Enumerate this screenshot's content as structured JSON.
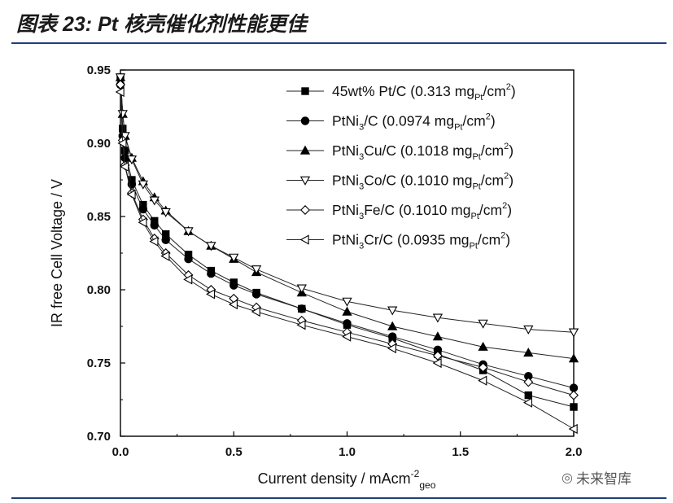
{
  "figure_title": "图表 23:   Pt 核壳催化剂性能更佳",
  "watermark": {
    "icon": "wechat-icon",
    "text": "未来智库"
  },
  "chart_data": {
    "type": "line",
    "xlabel": "Current density / mAcm",
    "xlabel_sup": "-2",
    "xlabel_sub": "geo",
    "ylabel": "IR free Cell Voltage / V",
    "xlim": [
      0,
      2.0
    ],
    "ylim": [
      0.7,
      0.95
    ],
    "x_ticks": [
      "0.0",
      "0.5",
      "1.0",
      "1.5",
      "2.0"
    ],
    "y_ticks": [
      "0.70",
      "0.75",
      "0.80",
      "0.85",
      "0.90",
      "0.95"
    ],
    "grid": false,
    "legend_position": "top-right",
    "series": [
      {
        "name": "45wt% Pt/C (0.313 mgPt/cm2)",
        "legend": {
          "main": "45wt% Pt/C (0.313 mg",
          "sub": "Pt",
          "tail": "/cm",
          "sup": "2",
          "end": ")"
        },
        "marker": "square",
        "fill": "#000000",
        "x": [
          0,
          0.01,
          0.02,
          0.05,
          0.1,
          0.15,
          0.2,
          0.3,
          0.4,
          0.5,
          0.6,
          0.8,
          1.0,
          1.2,
          1.4,
          1.6,
          1.8,
          2.0
        ],
        "y": [
          0.945,
          0.91,
          0.895,
          0.875,
          0.858,
          0.847,
          0.838,
          0.824,
          0.813,
          0.805,
          0.798,
          0.787,
          0.776,
          0.767,
          0.756,
          0.745,
          0.728,
          0.72
        ]
      },
      {
        "name": "PtNi3/C (0.0974 mgPt/cm2)",
        "legend": {
          "main": "PtNi",
          "sub1": "3",
          "mid": "/C (0.0974 mg",
          "sub": "Pt",
          "tail": "/cm",
          "sup": "2",
          "end": ")"
        },
        "marker": "circle",
        "fill": "#000000",
        "x": [
          0,
          0.01,
          0.02,
          0.05,
          0.1,
          0.15,
          0.2,
          0.3,
          0.4,
          0.5,
          0.6,
          0.8,
          1.0,
          1.2,
          1.4,
          1.6,
          1.8,
          2.0
        ],
        "y": [
          0.94,
          0.905,
          0.89,
          0.872,
          0.855,
          0.844,
          0.834,
          0.821,
          0.811,
          0.803,
          0.797,
          0.787,
          0.777,
          0.768,
          0.759,
          0.749,
          0.741,
          0.733
        ]
      },
      {
        "name": "PtNi3Cu/C (0.1018 mgPt/cm2)",
        "legend": {
          "main": "PtNi",
          "sub1": "3",
          "mid": "Cu/C (0.1018 mg",
          "sub": "Pt",
          "tail": "/cm",
          "sup": "2",
          "end": ")"
        },
        "marker": "triangle-up",
        "fill": "#000000",
        "x": [
          0,
          0.01,
          0.02,
          0.05,
          0.1,
          0.15,
          0.2,
          0.3,
          0.4,
          0.5,
          0.6,
          0.8,
          1.0,
          1.2,
          1.4,
          1.6,
          1.8,
          2.0
        ],
        "y": [
          0.945,
          0.92,
          0.905,
          0.89,
          0.874,
          0.863,
          0.854,
          0.84,
          0.83,
          0.821,
          0.812,
          0.798,
          0.785,
          0.775,
          0.768,
          0.761,
          0.757,
          0.753
        ]
      },
      {
        "name": "PtNi3Co/C (0.1010 mgPt/cm2)",
        "legend": {
          "main": "PtNi",
          "sub1": "3",
          "mid": "Co/C (0.1010 mg",
          "sub": "Pt",
          "tail": "/cm",
          "sup": "2",
          "end": ")"
        },
        "marker": "triangle-down",
        "fill": "#ffffff",
        "x": [
          0,
          0.01,
          0.02,
          0.05,
          0.1,
          0.15,
          0.2,
          0.3,
          0.4,
          0.5,
          0.6,
          0.8,
          1.0,
          1.2,
          1.4,
          1.6,
          1.8,
          2.0
        ],
        "y": [
          0.945,
          0.92,
          0.905,
          0.889,
          0.872,
          0.861,
          0.853,
          0.84,
          0.83,
          0.822,
          0.814,
          0.801,
          0.792,
          0.786,
          0.781,
          0.777,
          0.773,
          0.771
        ]
      },
      {
        "name": "PtNi3Fe/C (0.1010 mgPt/cm2)",
        "legend": {
          "main": "PtNi",
          "sub1": "3",
          "mid": "Fe/C (0.1010 mg",
          "sub": "Pt",
          "tail": "/cm",
          "sup": "2",
          "end": ")"
        },
        "marker": "diamond",
        "fill": "#ffffff",
        "x": [
          0,
          0.01,
          0.02,
          0.05,
          0.1,
          0.15,
          0.2,
          0.3,
          0.4,
          0.5,
          0.6,
          0.8,
          1.0,
          1.2,
          1.4,
          1.6,
          1.8,
          2.0
        ],
        "y": [
          0.94,
          0.902,
          0.885,
          0.866,
          0.848,
          0.835,
          0.825,
          0.81,
          0.8,
          0.794,
          0.788,
          0.779,
          0.771,
          0.763,
          0.755,
          0.747,
          0.737,
          0.728
        ]
      },
      {
        "name": "PtNi3Cr/C (0.0935 mgPt/cm2)",
        "legend": {
          "main": "PtNi",
          "sub1": "3",
          "mid": "Cr/C (0.0935 mg",
          "sub": "Pt",
          "tail": "/cm",
          "sup": "2",
          "end": ")"
        },
        "marker": "triangle-left",
        "fill": "#ffffff",
        "x": [
          0,
          0.01,
          0.02,
          0.05,
          0.1,
          0.15,
          0.2,
          0.3,
          0.4,
          0.5,
          0.6,
          0.8,
          1.0,
          1.2,
          1.4,
          1.6,
          1.8,
          2.0
        ],
        "y": [
          0.935,
          0.9,
          0.884,
          0.865,
          0.846,
          0.833,
          0.823,
          0.807,
          0.797,
          0.79,
          0.785,
          0.776,
          0.768,
          0.76,
          0.75,
          0.738,
          0.723,
          0.705
        ]
      }
    ]
  }
}
